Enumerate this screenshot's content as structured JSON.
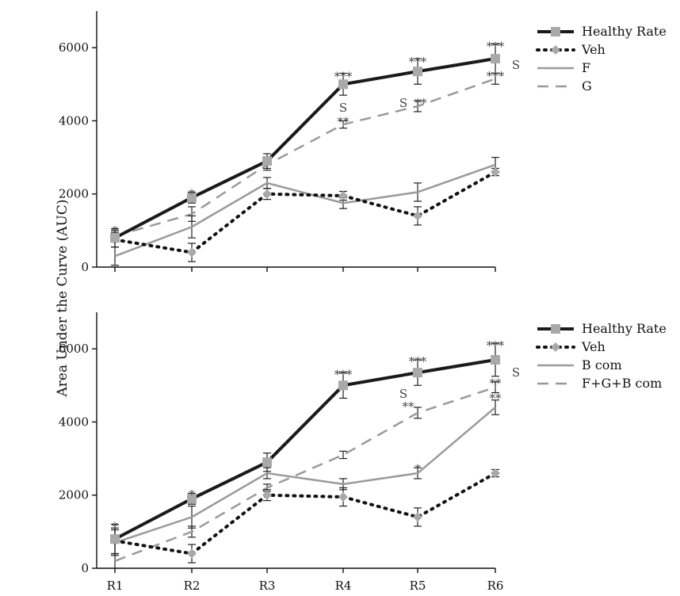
{
  "figure": {
    "ylabel": "Area Under the Curve (AUC)"
  },
  "chart_data": [
    {
      "type": "line",
      "panel": "top",
      "categories": [
        "R1",
        "R2",
        "R3",
        "R4",
        "R5",
        "R6"
      ],
      "ylim": [
        0,
        7000
      ],
      "yticks": [
        0,
        2000,
        4000,
        6000
      ],
      "ytick_labels": [
        "0",
        "2000",
        "4000",
        "6000"
      ],
      "xtick_labels": [
        "",
        "",
        "",
        "",
        "",
        ""
      ],
      "legend_position": "top-right",
      "series": [
        {
          "name": "Healthy Rate",
          "values": [
            800,
            1900,
            2900,
            5000,
            5350,
            5700
          ],
          "errors": [
            250,
            150,
            200,
            300,
            350,
            400
          ],
          "color": "#1a1a1a",
          "style": "solid",
          "width": 4,
          "marker": "square"
        },
        {
          "name": "Veh",
          "values": [
            750,
            400,
            2000,
            1950,
            1400,
            2600
          ],
          "errors": [
            200,
            250,
            150,
            120,
            250,
            100
          ],
          "color": "#111111",
          "style": "dotted",
          "width": 4,
          "marker": "diamond"
        },
        {
          "name": "F",
          "values": [
            300,
            1100,
            2300,
            1750,
            2050,
            2800
          ],
          "errors": [
            250,
            300,
            150,
            150,
            250,
            200
          ],
          "color": "#9a9a9a",
          "style": "solid",
          "width": 2.5,
          "marker": "none"
        },
        {
          "name": "G",
          "values": [
            850,
            1450,
            2800,
            3900,
            4400,
            5150
          ],
          "errors": [
            150,
            200,
            150,
            100,
            150,
            150
          ],
          "color": "#9a9a9a",
          "style": "dashed",
          "width": 2.5,
          "marker": "none"
        }
      ],
      "annotations": [
        {
          "x": "R1",
          "y": 1110,
          "text": "*"
        },
        {
          "x": "R2",
          "y": 2110,
          "text": "*"
        },
        {
          "x": "R4",
          "y": 5320,
          "text": "***"
        },
        {
          "x": "R4",
          "y": 4460,
          "text": "S"
        },
        {
          "x": "R4",
          "y": 4080,
          "text": "**"
        },
        {
          "x": "R5",
          "y": 5720,
          "text": "***"
        },
        {
          "x": "R5",
          "y": 4590,
          "text": "S",
          "dx": -18
        },
        {
          "x": "R5",
          "y": 4590,
          "text": "**",
          "dx": 4
        },
        {
          "x": "R6",
          "y": 6140,
          "text": "***"
        },
        {
          "x": "R6",
          "y": 5640,
          "text": "S",
          "dx": 26
        },
        {
          "x": "R6",
          "y": 5330,
          "text": "***"
        }
      ]
    },
    {
      "type": "line",
      "panel": "bottom",
      "categories": [
        "R1",
        "R2",
        "R3",
        "R4",
        "R5",
        "R6"
      ],
      "ylim": [
        0,
        7000
      ],
      "yticks": [
        0,
        2000,
        4000,
        6000
      ],
      "ytick_labels": [
        "0",
        "2000",
        "4000",
        "6000"
      ],
      "xtick_labels": [
        "R1",
        "R2",
        "R3",
        "R4",
        "R5",
        "R6"
      ],
      "legend_position": "top-right",
      "series": [
        {
          "name": "Healthy Rate",
          "values": [
            800,
            1900,
            2900,
            5000,
            5350,
            5700
          ],
          "errors": [
            400,
            150,
            250,
            350,
            350,
            450
          ],
          "color": "#1a1a1a",
          "style": "solid",
          "width": 4,
          "marker": "square"
        },
        {
          "name": "Veh",
          "values": [
            750,
            400,
            2000,
            1950,
            1400,
            2600
          ],
          "errors": [
            350,
            250,
            150,
            250,
            250,
            100
          ],
          "color": "#111111",
          "style": "dotted",
          "width": 4,
          "marker": "diamond"
        },
        {
          "name": "B com",
          "values": [
            700,
            1400,
            2600,
            2300,
            2600,
            4400
          ],
          "errors": [
            350,
            300,
            150,
            150,
            150,
            200
          ],
          "color": "#9a9a9a",
          "style": "solid",
          "width": 2.5,
          "marker": "none"
        },
        {
          "name": "F+G+B com",
          "values": [
            200,
            1000,
            2200,
            3100,
            4250,
            4950
          ],
          "errors": [
            200,
            150,
            100,
            100,
            150,
            150
          ],
          "color": "#9a9a9a",
          "style": "dashed",
          "width": 2.5,
          "marker": "none"
        }
      ],
      "annotations": [
        {
          "x": "R1",
          "y": 1250,
          "text": "*"
        },
        {
          "x": "R2",
          "y": 2120,
          "text": "*"
        },
        {
          "x": "R4",
          "y": 5410,
          "text": "***"
        },
        {
          "x": "R5",
          "y": 5770,
          "text": "***"
        },
        {
          "x": "R5",
          "y": 4880,
          "text": "S",
          "dx": -18
        },
        {
          "x": "R5",
          "y": 4530,
          "text": "**",
          "dx": -12
        },
        {
          "x": "R5",
          "y": 2830,
          "text": "*"
        },
        {
          "x": "R6",
          "y": 6200,
          "text": "***"
        },
        {
          "x": "R6",
          "y": 5460,
          "text": "S",
          "dx": 26
        },
        {
          "x": "R6",
          "y": 5170,
          "text": "**"
        },
        {
          "x": "R6",
          "y": 4760,
          "text": "**"
        }
      ]
    }
  ]
}
